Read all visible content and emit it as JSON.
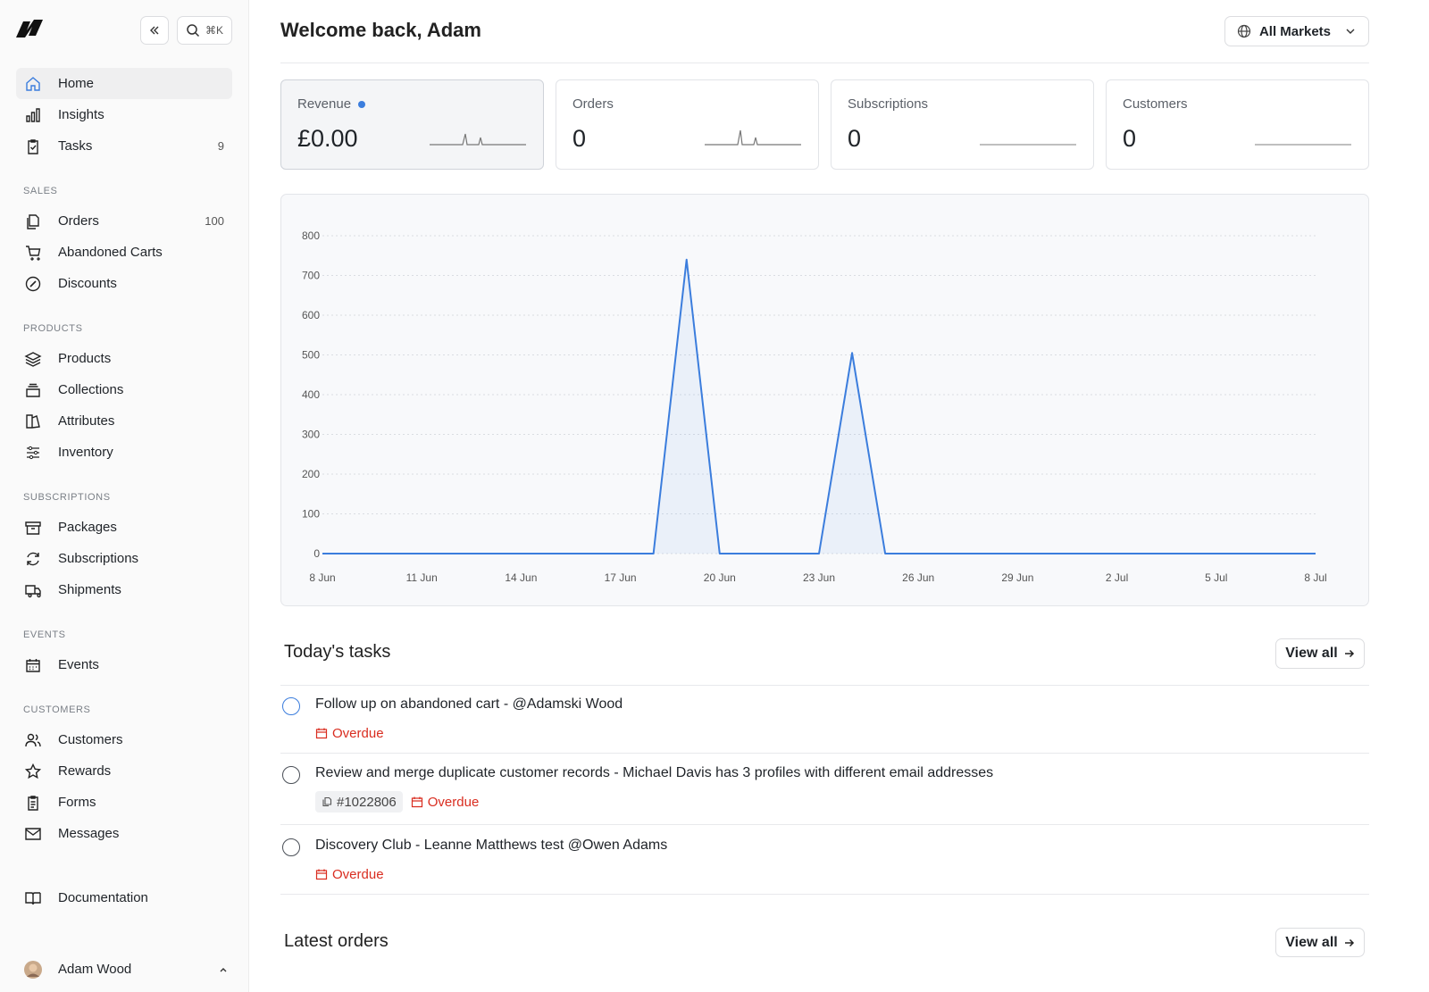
{
  "sidebar": {
    "search_shortcut": "⌘K",
    "sections": [
      {
        "items": [
          {
            "label": "Home"
          },
          {
            "label": "Insights"
          },
          {
            "label": "Tasks",
            "badge": "9"
          }
        ]
      },
      {
        "title": "SALES",
        "items": [
          {
            "label": "Orders",
            "badge": "100"
          },
          {
            "label": "Abandoned Carts"
          },
          {
            "label": "Discounts"
          }
        ]
      },
      {
        "title": "PRODUCTS",
        "items": [
          {
            "label": "Products"
          },
          {
            "label": "Collections"
          },
          {
            "label": "Attributes"
          },
          {
            "label": "Inventory"
          }
        ]
      },
      {
        "title": "SUBSCRIPTIONS",
        "items": [
          {
            "label": "Packages"
          },
          {
            "label": "Subscriptions"
          },
          {
            "label": "Shipments"
          }
        ]
      },
      {
        "title": "EVENTS",
        "items": [
          {
            "label": "Events"
          }
        ]
      },
      {
        "title": "CUSTOMERS",
        "items": [
          {
            "label": "Customers"
          },
          {
            "label": "Rewards"
          },
          {
            "label": "Forms"
          },
          {
            "label": "Messages"
          }
        ]
      }
    ],
    "documentation": "Documentation",
    "user": "Adam Wood"
  },
  "header": {
    "title": "Welcome back, Adam",
    "market_selector": "All Markets"
  },
  "stats": [
    {
      "label": "Revenue",
      "value": "£0.00"
    },
    {
      "label": "Orders",
      "value": "0"
    },
    {
      "label": "Subscriptions",
      "value": "0"
    },
    {
      "label": "Customers",
      "value": "0"
    }
  ],
  "chart_data": {
    "type": "area",
    "categories": [
      "8 Jun",
      null,
      null,
      "11 Jun",
      null,
      null,
      "14 Jun",
      null,
      null,
      "17 Jun",
      null,
      null,
      "20 Jun",
      null,
      null,
      "23 Jun",
      null,
      null,
      "26 Jun",
      null,
      null,
      "29 Jun",
      null,
      null,
      "2 Jul",
      null,
      null,
      "5 Jul",
      null,
      null,
      "8 Jul"
    ],
    "values": [
      0,
      0,
      0,
      0,
      0,
      0,
      0,
      0,
      0,
      0,
      0,
      740,
      0,
      0,
      0,
      0,
      505,
      0,
      0,
      0,
      0,
      0,
      0,
      0,
      0,
      0,
      0,
      0,
      0,
      0,
      0
    ],
    "color": "#3b7ddd",
    "ylim": [
      0,
      800
    ],
    "yticks": [
      0,
      100,
      200,
      300,
      400,
      500,
      600,
      700,
      800
    ],
    "grid": true
  },
  "tasks": {
    "title": "Today's tasks",
    "view_all": "View all",
    "items": [
      {
        "text": "Follow up on abandoned cart - @Adamski Wood",
        "status": "Overdue"
      },
      {
        "text": "Review and merge duplicate customer records - Michael Davis has 3 profiles with different email addresses",
        "tag": "#1022806",
        "status": "Overdue"
      },
      {
        "text": "Discovery Club - Leanne Matthews test @Owen Adams",
        "status": "Overdue"
      }
    ]
  },
  "latest_orders": {
    "title": "Latest orders",
    "view_all": "View all"
  }
}
